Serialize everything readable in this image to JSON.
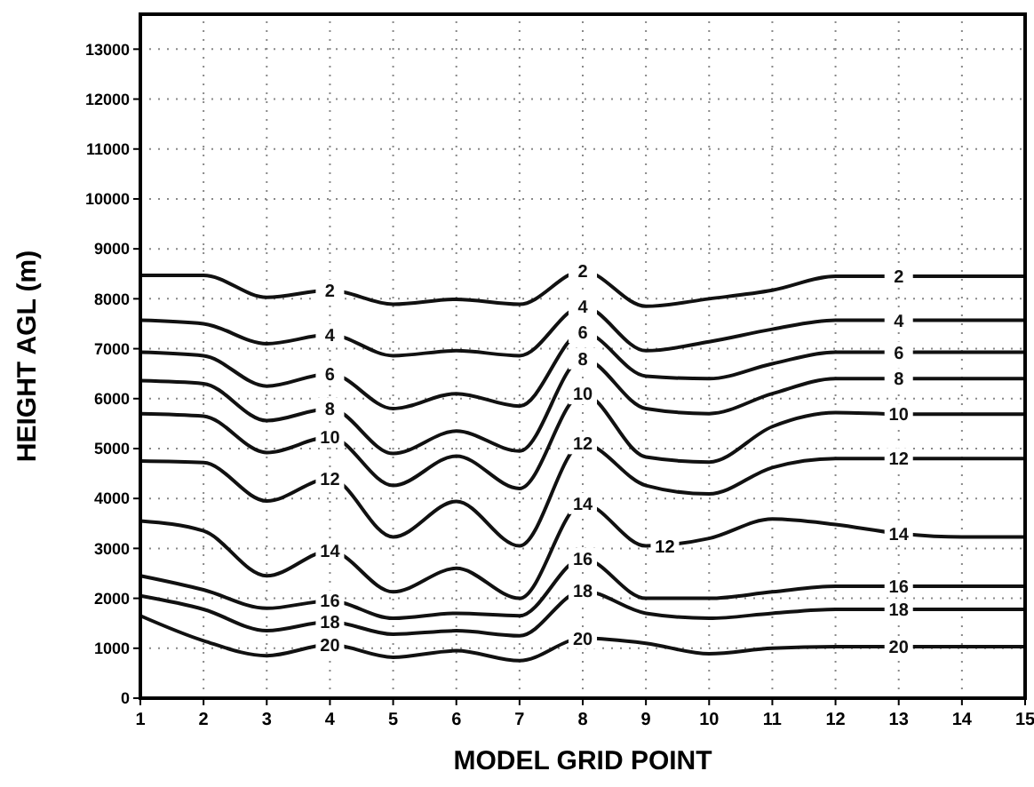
{
  "chart_data": {
    "type": "line",
    "xlabel": "MODEL GRID POINT",
    "ylabel": "HEIGHT AGL (m)",
    "x": [
      1,
      2,
      3,
      4,
      5,
      6,
      7,
      8,
      9,
      10,
      11,
      12,
      13,
      14,
      15
    ],
    "xlim": [
      1,
      15
    ],
    "xticks": [
      1,
      2,
      3,
      4,
      5,
      6,
      7,
      8,
      9,
      10,
      11,
      12,
      13,
      14,
      15
    ],
    "ylim": [
      0,
      13700
    ],
    "yticks": [
      0,
      1000,
      2000,
      3000,
      4000,
      5000,
      6000,
      7000,
      8000,
      9000,
      10000,
      11000,
      12000,
      13000
    ],
    "grid": true,
    "marker": "none",
    "line_style": "solid",
    "series": [
      {
        "name": "2",
        "color": "#111111",
        "values": [
          8470,
          8470,
          8030,
          8170,
          7890,
          7990,
          7890,
          8560,
          7850,
          8000,
          8170,
          8450,
          8450,
          8450,
          8450
        ]
      },
      {
        "name": "4",
        "color": "#111111",
        "values": [
          7570,
          7500,
          7100,
          7280,
          6860,
          6960,
          6860,
          7850,
          6960,
          7140,
          7390,
          7570,
          7570,
          7570,
          7570
        ]
      },
      {
        "name": "6",
        "color": "#111111",
        "values": [
          6930,
          6860,
          6250,
          6500,
          5800,
          6100,
          5850,
          7330,
          6450,
          6400,
          6700,
          6930,
          6930,
          6930,
          6930
        ]
      },
      {
        "name": "8",
        "color": "#111111",
        "values": [
          6360,
          6300,
          5560,
          5800,
          4900,
          5350,
          4950,
          6800,
          5800,
          5700,
          6100,
          6400,
          6400,
          6400,
          6400
        ]
      },
      {
        "name": "10",
        "color": "#111111",
        "values": [
          5700,
          5650,
          4920,
          5230,
          4260,
          4850,
          4200,
          6100,
          4830,
          4730,
          5440,
          5720,
          5690,
          5690,
          5690
        ]
      },
      {
        "name": "12",
        "color": "#111111",
        "values": [
          4750,
          4720,
          3950,
          4400,
          3230,
          3940,
          3050,
          5100,
          4260,
          4090,
          4620,
          4800,
          4800,
          4800,
          4800
        ]
      },
      {
        "name": "14",
        "color": "#111111",
        "values": [
          3550,
          3350,
          2450,
          2950,
          2130,
          2600,
          2000,
          3900,
          3050,
          3200,
          3590,
          3480,
          3300,
          3230,
          3230
        ]
      },
      {
        "name": "16",
        "color": "#111111",
        "values": [
          2450,
          2170,
          1800,
          1950,
          1600,
          1700,
          1650,
          2800,
          2000,
          2000,
          2130,
          2240,
          2240,
          2240,
          2240
        ]
      },
      {
        "name": "18",
        "color": "#111111",
        "values": [
          2050,
          1780,
          1350,
          1530,
          1280,
          1350,
          1250,
          2150,
          1700,
          1600,
          1700,
          1780,
          1780,
          1780,
          1780
        ]
      },
      {
        "name": "20",
        "color": "#111111",
        "values": [
          1650,
          1150,
          850,
          1070,
          820,
          950,
          750,
          1200,
          1100,
          890,
          1000,
          1030,
          1030,
          1030,
          1030
        ]
      }
    ],
    "annotations": [
      {
        "text": "12",
        "x": 9.3,
        "y": 3050
      }
    ]
  }
}
